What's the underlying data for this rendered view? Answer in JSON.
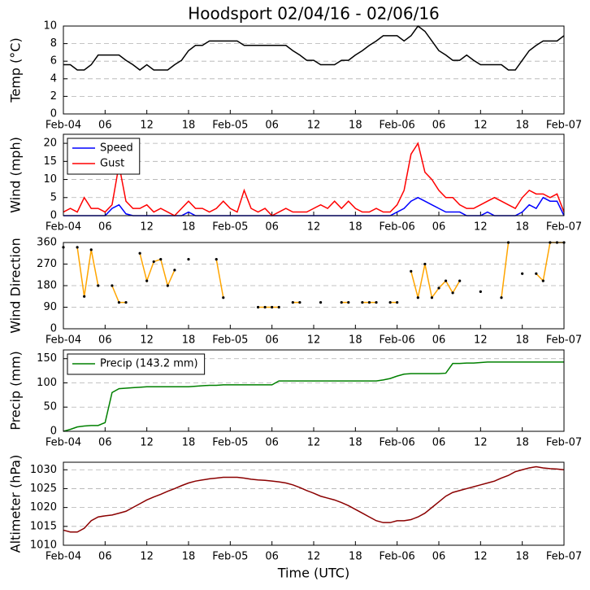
{
  "chart_data": [
    {
      "type": "line",
      "title": "Hoodsport 02/04/16 - 02/06/16",
      "ylabel": "Temp (°C)",
      "x": [
        0,
        1,
        2,
        3,
        4,
        5,
        6,
        7,
        8,
        9,
        10,
        11,
        12,
        13,
        14,
        15,
        16,
        17,
        18,
        19,
        20,
        21,
        22,
        23,
        24,
        25,
        26,
        27,
        28,
        29,
        30,
        31,
        32,
        33,
        34,
        35,
        36,
        37,
        38,
        39,
        40,
        41,
        42,
        43,
        44,
        45,
        46,
        47,
        48,
        49,
        50,
        51,
        52,
        53,
        54,
        55,
        56,
        57,
        58,
        59,
        60,
        61,
        62,
        63,
        64,
        65,
        66,
        67,
        68,
        69,
        70,
        71,
        72
      ],
      "xlim": [
        0,
        72
      ],
      "xticks": [
        {
          "value": 0,
          "label": "Feb-04"
        },
        {
          "value": 6,
          "label": "06"
        },
        {
          "value": 12,
          "label": "12"
        },
        {
          "value": 18,
          "label": "18"
        },
        {
          "value": 24,
          "label": "Feb-05"
        },
        {
          "value": 30,
          "label": "06"
        },
        {
          "value": 36,
          "label": "12"
        },
        {
          "value": 42,
          "label": "18"
        },
        {
          "value": 48,
          "label": "Feb-06"
        },
        {
          "value": 54,
          "label": "06"
        },
        {
          "value": 60,
          "label": "12"
        },
        {
          "value": 66,
          "label": "18"
        },
        {
          "value": 72,
          "label": "Feb-07"
        }
      ],
      "ylim": [
        0,
        10
      ],
      "yticks": [
        0,
        2,
        4,
        6,
        8,
        10
      ],
      "grid": true,
      "series": [
        {
          "color": "#000000",
          "values": [
            5.6,
            5.6,
            5.0,
            5.0,
            5.6,
            6.7,
            6.7,
            6.7,
            6.7,
            6.1,
            5.6,
            5.0,
            5.6,
            5.0,
            5.0,
            5.0,
            5.6,
            6.1,
            7.2,
            7.8,
            7.8,
            8.3,
            8.3,
            8.3,
            8.3,
            8.3,
            7.8,
            7.8,
            7.8,
            7.8,
            7.8,
            7.8,
            7.8,
            7.2,
            6.7,
            6.1,
            6.1,
            5.6,
            5.6,
            5.6,
            6.1,
            6.1,
            6.7,
            7.2,
            7.8,
            8.3,
            8.9,
            8.9,
            8.9,
            8.3,
            8.9,
            10,
            9.4,
            8.3,
            7.2,
            6.7,
            6.1,
            6.1,
            6.7,
            6.1,
            5.6,
            5.6,
            5.6,
            5.6,
            5.0,
            5.0,
            6.1,
            7.2,
            7.8,
            8.3,
            8.3,
            8.3,
            8.9
          ]
        }
      ]
    },
    {
      "type": "line",
      "ylabel": "Wind (mph)",
      "x": [
        0,
        1,
        2,
        3,
        4,
        5,
        6,
        7,
        8,
        9,
        10,
        11,
        12,
        13,
        14,
        15,
        16,
        17,
        18,
        19,
        20,
        21,
        22,
        23,
        24,
        25,
        26,
        27,
        28,
        29,
        30,
        31,
        32,
        33,
        34,
        35,
        36,
        37,
        38,
        39,
        40,
        41,
        42,
        43,
        44,
        45,
        46,
        47,
        48,
        49,
        50,
        51,
        52,
        53,
        54,
        55,
        56,
        57,
        58,
        59,
        60,
        61,
        62,
        63,
        64,
        65,
        66,
        67,
        68,
        69,
        70,
        71,
        72
      ],
      "xlim": [
        0,
        72
      ],
      "xticks": [
        {
          "value": 0,
          "label": "Feb-04"
        },
        {
          "value": 6,
          "label": "06"
        },
        {
          "value": 12,
          "label": "12"
        },
        {
          "value": 18,
          "label": "18"
        },
        {
          "value": 24,
          "label": "Feb-05"
        },
        {
          "value": 30,
          "label": "06"
        },
        {
          "value": 36,
          "label": "12"
        },
        {
          "value": 42,
          "label": "18"
        },
        {
          "value": 48,
          "label": "Feb-06"
        },
        {
          "value": 54,
          "label": "06"
        },
        {
          "value": 60,
          "label": "12"
        },
        {
          "value": 66,
          "label": "18"
        },
        {
          "value": 72,
          "label": "Feb-07"
        }
      ],
      "ylim": [
        0,
        22.5
      ],
      "yticks": [
        0,
        5,
        10,
        15,
        20
      ],
      "grid": true,
      "legend": "upper left",
      "series": [
        {
          "name": "Speed",
          "color": "#0000ff",
          "values": [
            0,
            0,
            0,
            0,
            0,
            0,
            0,
            2,
            3,
            0.5,
            0,
            0,
            0,
            0,
            0,
            0,
            0,
            0,
            1,
            0,
            0,
            0,
            0,
            0,
            0,
            0,
            0,
            0,
            0,
            0,
            0,
            0,
            0,
            0,
            0,
            0,
            0,
            0,
            0,
            0,
            0,
            0,
            0,
            0,
            0,
            0,
            0,
            0,
            1,
            2,
            4,
            5,
            4,
            3,
            2,
            1,
            1,
            1,
            0,
            0,
            0,
            1,
            0,
            0,
            0,
            0,
            1,
            3,
            2,
            5,
            4,
            4,
            0
          ]
        },
        {
          "name": "Gust",
          "color": "#ff0000",
          "values": [
            1,
            2,
            1,
            5,
            2,
            2,
            1,
            3,
            14,
            4,
            2,
            2,
            3,
            1,
            2,
            1,
            0,
            2,
            4,
            2,
            2,
            1,
            2,
            4,
            2,
            1,
            7,
            2,
            1,
            2,
            0,
            1,
            2,
            1,
            1,
            1,
            2,
            3,
            2,
            4,
            2,
            4,
            2,
            1,
            1,
            2,
            1,
            1,
            3,
            7,
            17,
            20,
            12,
            10,
            7,
            5,
            5,
            3,
            2,
            2,
            3,
            4,
            5,
            4,
            3,
            2,
            5,
            7,
            6,
            6,
            5,
            6,
            1
          ]
        }
      ]
    },
    {
      "type": "line",
      "ylabel": "Wind Direction",
      "x": [
        0,
        1,
        2,
        3,
        4,
        5,
        6,
        7,
        8,
        9,
        10,
        11,
        12,
        13,
        14,
        15,
        16,
        17,
        18,
        19,
        20,
        21,
        22,
        23,
        24,
        25,
        26,
        27,
        28,
        29,
        30,
        31,
        32,
        33,
        34,
        35,
        36,
        37,
        38,
        39,
        40,
        41,
        42,
        43,
        44,
        45,
        46,
        47,
        48,
        49,
        50,
        51,
        52,
        53,
        54,
        55,
        56,
        57,
        58,
        59,
        60,
        61,
        62,
        63,
        64,
        65,
        66,
        67,
        68,
        69,
        70,
        71,
        72
      ],
      "xlim": [
        0,
        72
      ],
      "xticks": [
        {
          "value": 0,
          "label": "Feb-04"
        },
        {
          "value": 6,
          "label": "06"
        },
        {
          "value": 12,
          "label": "12"
        },
        {
          "value": 18,
          "label": "18"
        },
        {
          "value": 24,
          "label": "Feb-05"
        },
        {
          "value": 30,
          "label": "06"
        },
        {
          "value": 36,
          "label": "12"
        },
        {
          "value": 42,
          "label": "18"
        },
        {
          "value": 48,
          "label": "Feb-06"
        },
        {
          "value": 54,
          "label": "06"
        },
        {
          "value": 60,
          "label": "12"
        },
        {
          "value": 66,
          "label": "18"
        },
        {
          "value": 72,
          "label": "Feb-07"
        }
      ],
      "ylim": [
        0,
        360
      ],
      "yticks": [
        0,
        90,
        180,
        270,
        360
      ],
      "grid": true,
      "markers": "#000000",
      "series": [
        {
          "color": "#ffa500",
          "values": [
            340,
            null,
            340,
            135,
            330,
            180,
            null,
            180,
            110,
            110,
            null,
            315,
            200,
            280,
            290,
            180,
            245,
            null,
            290,
            null,
            null,
            null,
            290,
            130,
            null,
            null,
            null,
            null,
            90,
            90,
            90,
            90,
            null,
            110,
            110,
            null,
            null,
            110,
            null,
            null,
            110,
            110,
            null,
            110,
            110,
            110,
            null,
            110,
            110,
            null,
            240,
            130,
            270,
            130,
            170,
            200,
            150,
            200,
            null,
            null,
            155,
            null,
            null,
            130,
            360,
            null,
            230,
            null,
            230,
            200,
            360,
            360,
            360
          ]
        }
      ]
    },
    {
      "type": "line",
      "ylabel": "Precip (mm)",
      "x": [
        0,
        1,
        2,
        3,
        4,
        5,
        6,
        7,
        8,
        9,
        10,
        11,
        12,
        13,
        14,
        15,
        16,
        17,
        18,
        19,
        20,
        21,
        22,
        23,
        24,
        25,
        26,
        27,
        28,
        29,
        30,
        31,
        32,
        33,
        34,
        35,
        36,
        37,
        38,
        39,
        40,
        41,
        42,
        43,
        44,
        45,
        46,
        47,
        48,
        49,
        50,
        51,
        52,
        53,
        54,
        55,
        56,
        57,
        58,
        59,
        60,
        61,
        62,
        63,
        64,
        65,
        66,
        67,
        68,
        69,
        70,
        71,
        72
      ],
      "xlim": [
        0,
        72
      ],
      "xticks": [
        {
          "value": 0,
          "label": "Feb-04"
        },
        {
          "value": 6,
          "label": "06"
        },
        {
          "value": 12,
          "label": "12"
        },
        {
          "value": 18,
          "label": "18"
        },
        {
          "value": 24,
          "label": "Feb-05"
        },
        {
          "value": 30,
          "label": "06"
        },
        {
          "value": 36,
          "label": "12"
        },
        {
          "value": 42,
          "label": "18"
        },
        {
          "value": 48,
          "label": "Feb-06"
        },
        {
          "value": 54,
          "label": "06"
        },
        {
          "value": 60,
          "label": "12"
        },
        {
          "value": 66,
          "label": "18"
        },
        {
          "value": 72,
          "label": "Feb-07"
        }
      ],
      "ylim": [
        0,
        168
      ],
      "yticks": [
        0,
        50,
        100,
        150
      ],
      "grid": true,
      "legend": "upper left",
      "series": [
        {
          "name": "Precip (143.2 mm)",
          "color": "#008000",
          "values": [
            0,
            4,
            9,
            11,
            12,
            12,
            18,
            80,
            88,
            89,
            90,
            91,
            92,
            92,
            92,
            92,
            92,
            92,
            92,
            93,
            94,
            95,
            95,
            96,
            96,
            96,
            96,
            96,
            96,
            96,
            96,
            104,
            104,
            104,
            104,
            104,
            104,
            104,
            104,
            104,
            104,
            104,
            104,
            104,
            104,
            104,
            106,
            109,
            114,
            118,
            119,
            119,
            119,
            119,
            119,
            120,
            140,
            140,
            141,
            141,
            142,
            143,
            143,
            143,
            143,
            143,
            143,
            143,
            143,
            143,
            143,
            143,
            143
          ]
        }
      ]
    },
    {
      "type": "line",
      "ylabel": "Altimeter (hPa)",
      "xlabel": "Time (UTC)",
      "x": [
        0,
        1,
        2,
        3,
        4,
        5,
        6,
        7,
        8,
        9,
        10,
        11,
        12,
        13,
        14,
        15,
        16,
        17,
        18,
        19,
        20,
        21,
        22,
        23,
        24,
        25,
        26,
        27,
        28,
        29,
        30,
        31,
        32,
        33,
        34,
        35,
        36,
        37,
        38,
        39,
        40,
        41,
        42,
        43,
        44,
        45,
        46,
        47,
        48,
        49,
        50,
        51,
        52,
        53,
        54,
        55,
        56,
        57,
        58,
        59,
        60,
        61,
        62,
        63,
        64,
        65,
        66,
        67,
        68,
        69,
        70,
        71,
        72
      ],
      "xlim": [
        0,
        72
      ],
      "xticks": [
        {
          "value": 0,
          "label": "Feb-04"
        },
        {
          "value": 6,
          "label": "06"
        },
        {
          "value": 12,
          "label": "12"
        },
        {
          "value": 18,
          "label": "18"
        },
        {
          "value": 24,
          "label": "Feb-05"
        },
        {
          "value": 30,
          "label": "06"
        },
        {
          "value": 36,
          "label": "12"
        },
        {
          "value": 42,
          "label": "18"
        },
        {
          "value": 48,
          "label": "Feb-06"
        },
        {
          "value": 54,
          "label": "06"
        },
        {
          "value": 60,
          "label": "12"
        },
        {
          "value": 66,
          "label": "18"
        },
        {
          "value": 72,
          "label": "Feb-07"
        }
      ],
      "ylim": [
        1010,
        1032
      ],
      "yticks": [
        1010,
        1015,
        1020,
        1025,
        1030
      ],
      "grid": true,
      "series": [
        {
          "color": "#8b0000",
          "values": [
            1014,
            1013.5,
            1013.5,
            1014.5,
            1016.5,
            1017.5,
            1017.8,
            1018,
            1018.5,
            1019,
            1020,
            1021,
            1022,
            1022.8,
            1023.5,
            1024.3,
            1025,
            1025.8,
            1026.5,
            1027,
            1027.3,
            1027.6,
            1027.8,
            1028,
            1028,
            1028,
            1027.8,
            1027.5,
            1027.3,
            1027.2,
            1027,
            1026.8,
            1026.5,
            1026,
            1025.3,
            1024.5,
            1023.8,
            1023,
            1022.5,
            1022,
            1021.3,
            1020.5,
            1019.5,
            1018.5,
            1017.5,
            1016.5,
            1016,
            1016,
            1016.5,
            1016.5,
            1016.8,
            1017.5,
            1018.5,
            1020,
            1021.5,
            1023,
            1024,
            1024.5,
            1025,
            1025.5,
            1026,
            1026.5,
            1027,
            1027.8,
            1028.5,
            1029.5,
            1030,
            1030.5,
            1030.8,
            1030.5,
            1030.3,
            1030.2,
            1030
          ]
        }
      ]
    }
  ]
}
